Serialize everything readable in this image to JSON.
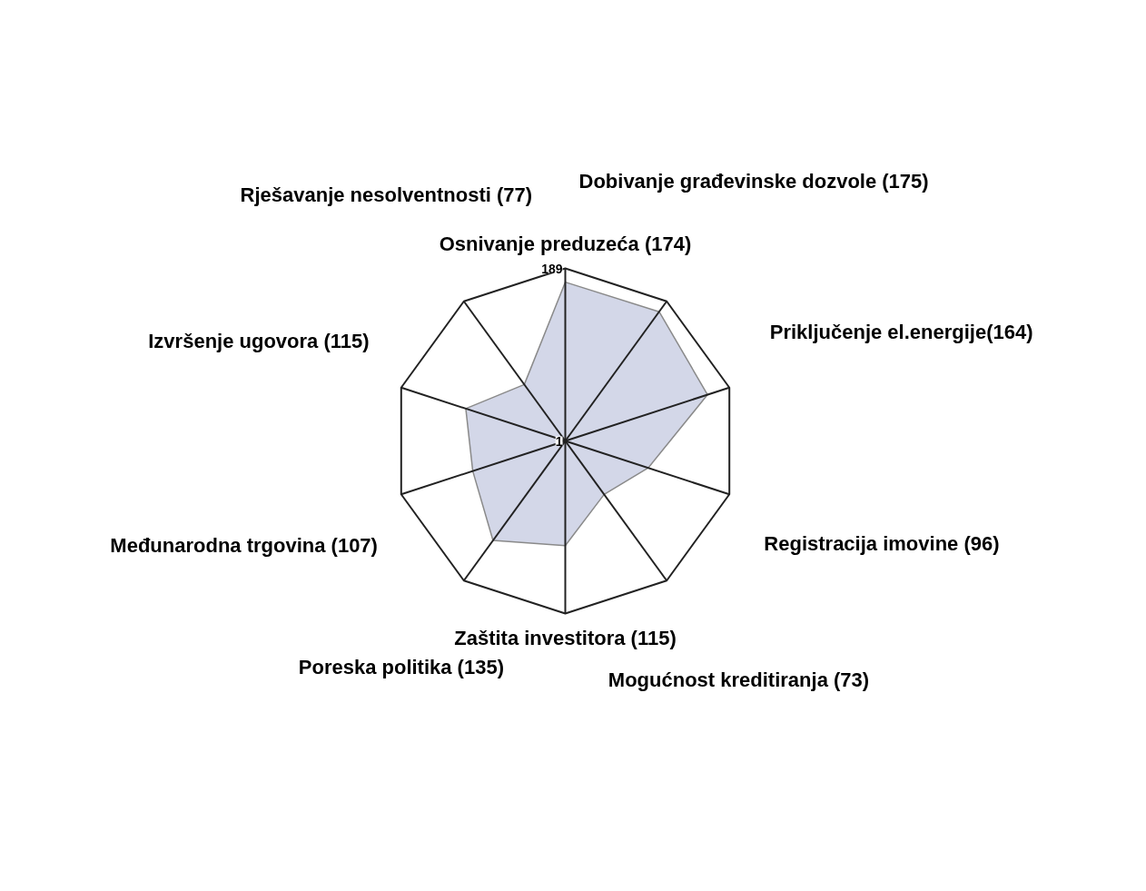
{
  "chart_data": {
    "type": "radar",
    "categories": [
      "Osnivanje preduzeća (174)",
      "Dobivanje građevinske dozvole (175)",
      "Priključenje el.energije(164)",
      "Registracija imovine (96)",
      "Mogućnost kreditiranja (73)",
      "Zaštita investitora (115)",
      "Poreska politika (135)",
      "Međunarodna trgovina (107)",
      "Izvršenje ugovora (115)",
      "Rješavanje nesolventnosti (77)"
    ],
    "series": [
      {
        "color": "#d3d7e8",
        "values": [
          174,
          175,
          164,
          96,
          73,
          115,
          135,
          107,
          115,
          77
        ]
      }
    ],
    "ylim": [
      1,
      189
    ],
    "yticks": [
      1,
      189
    ]
  }
}
